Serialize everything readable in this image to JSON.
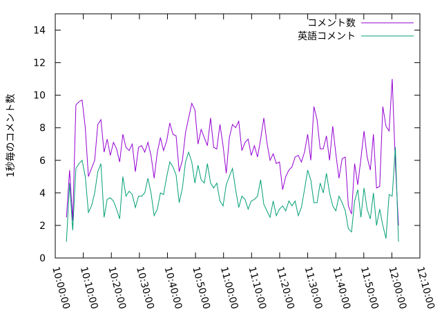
{
  "chart_data": {
    "type": "line",
    "ylabel": "1秒毎のコメント数",
    "x": [
      "10:04:00",
      "10:05:07",
      "10:06:14",
      "10:07:21",
      "10:08:28",
      "10:09:35",
      "10:10:42",
      "10:11:49",
      "10:12:56",
      "10:14:03",
      "10:15:10",
      "10:16:17",
      "10:17:24",
      "10:18:31",
      "10:19:38",
      "10:20:45",
      "10:21:52",
      "10:22:59",
      "10:24:06",
      "10:25:13",
      "10:26:20",
      "10:27:27",
      "10:28:34",
      "10:29:41",
      "10:30:48",
      "10:31:55",
      "10:33:02",
      "10:34:09",
      "10:35:16",
      "10:36:23",
      "10:37:30",
      "10:38:37",
      "10:39:44",
      "10:40:51",
      "10:41:58",
      "10:43:05",
      "10:44:12",
      "10:45:19",
      "10:46:26",
      "10:47:33",
      "10:48:40",
      "10:49:47",
      "10:50:54",
      "10:52:01",
      "10:53:08",
      "10:54:15",
      "10:55:22",
      "10:56:29",
      "10:57:36",
      "10:58:43",
      "10:59:50",
      "11:00:57",
      "11:02:04",
      "11:03:11",
      "11:04:18",
      "11:05:25",
      "11:06:32",
      "11:07:39",
      "11:08:46",
      "11:09:53",
      "11:11:00",
      "11:12:07",
      "11:13:14",
      "11:14:21",
      "11:15:28",
      "11:16:35",
      "11:17:42",
      "11:18:49",
      "11:19:56",
      "11:21:03",
      "11:22:10",
      "11:23:17",
      "11:24:24",
      "11:25:31",
      "11:26:38",
      "11:27:45",
      "11:28:52",
      "11:29:59",
      "11:31:06",
      "11:32:13",
      "11:33:20",
      "11:34:27",
      "11:35:34",
      "11:36:41",
      "11:37:48",
      "11:38:55",
      "11:40:02",
      "11:41:09",
      "11:42:16",
      "11:43:23",
      "11:44:30",
      "11:45:37",
      "11:46:44",
      "11:47:51",
      "11:48:58",
      "11:50:05",
      "11:51:12",
      "11:52:19",
      "11:53:26",
      "11:54:33",
      "11:55:40",
      "11:56:47",
      "11:57:54",
      "11:59:01",
      "12:00:08",
      "12:01:15",
      "12:02:22"
    ],
    "series": [
      {
        "name": "コメント数",
        "color": "#9400d3",
        "values": [
          2.5,
          5.4,
          2.3,
          9.4,
          9.6,
          9.7,
          8.0,
          5.0,
          5.5,
          6.0,
          8.2,
          8.5,
          6.5,
          7.3,
          6.3,
          7.1,
          6.7,
          5.9,
          7.6,
          6.8,
          6.6,
          7.0,
          5.3,
          6.8,
          6.9,
          6.5,
          7.1,
          6.3,
          4.9,
          6.5,
          7.4,
          6.6,
          7.2,
          8.3,
          7.6,
          7.5,
          5.3,
          6.0,
          7.7,
          8.6,
          9.5,
          9.1,
          7.0,
          7.9,
          7.4,
          6.9,
          8.6,
          6.8,
          6.7,
          8.2,
          6.9,
          5.2,
          7.4,
          8.2,
          8.0,
          8.4,
          6.6,
          7.1,
          7.3,
          6.3,
          6.9,
          6.2,
          7.3,
          8.6,
          7.1,
          6.0,
          6.4,
          5.8,
          5.9,
          4.2,
          5.0,
          5.4,
          5.6,
          6.2,
          6.3,
          5.9,
          6.5,
          7.6,
          6.0,
          9.3,
          8.5,
          6.7,
          6.7,
          7.5,
          6.0,
          8.1,
          6.4,
          4.9,
          6.1,
          6.2,
          3.2,
          2.7,
          5.8,
          4.5,
          6.1,
          7.8,
          6.2,
          5.4,
          7.6,
          4.3,
          4.4,
          9.3,
          8.1,
          7.8,
          11.0,
          5.8,
          2.0
        ]
      },
      {
        "name": "英語コメント",
        "color": "#009e73",
        "values": [
          1.0,
          4.6,
          1.7,
          5.5,
          5.8,
          6.0,
          5.0,
          2.8,
          3.2,
          4.0,
          5.3,
          5.8,
          2.5,
          3.6,
          3.7,
          3.5,
          3.0,
          2.4,
          5.0,
          3.8,
          4.1,
          3.9,
          3.1,
          3.8,
          3.8,
          4.0,
          4.9,
          4.0,
          2.6,
          3.0,
          4.0,
          3.9,
          5.0,
          5.9,
          5.6,
          5.1,
          3.4,
          4.3,
          5.9,
          6.5,
          5.9,
          4.6,
          5.7,
          4.8,
          4.6,
          5.8,
          4.6,
          4.3,
          4.6,
          3.5,
          3.2,
          4.5,
          5.0,
          5.5,
          4.2,
          3.1,
          3.8,
          3.6,
          3.0,
          3.5,
          3.6,
          3.8,
          4.8,
          3.3,
          2.9,
          2.5,
          3.5,
          2.6,
          3.0,
          3.2,
          2.9,
          3.5,
          3.2,
          3.5,
          2.6,
          3.1,
          4.2,
          5.4,
          4.8,
          3.4,
          3.4,
          4.6,
          4.0,
          5.2,
          4.0,
          3.2,
          2.9,
          3.8,
          3.4,
          2.9,
          1.8,
          1.6,
          3.5,
          4.2,
          2.5,
          4.3,
          3.0,
          2.4,
          4.0,
          2.0,
          3.0,
          2.0,
          1.2,
          3.9,
          3.8,
          6.8,
          1.0
        ]
      }
    ],
    "xlim": [
      "10:00:00",
      "12:10:00"
    ],
    "xticks": [
      "10:00:00",
      "10:10:00",
      "10:20:00",
      "10:30:00",
      "10:40:00",
      "10:50:00",
      "11:00:00",
      "11:10:00",
      "11:20:00",
      "11:30:00",
      "11:40:00",
      "11:50:00",
      "12:00:00",
      "12:10:00"
    ],
    "ylim": [
      0,
      15
    ],
    "yticks": [
      0,
      2,
      4,
      6,
      8,
      10,
      12,
      14
    ],
    "legend": "top-right"
  }
}
